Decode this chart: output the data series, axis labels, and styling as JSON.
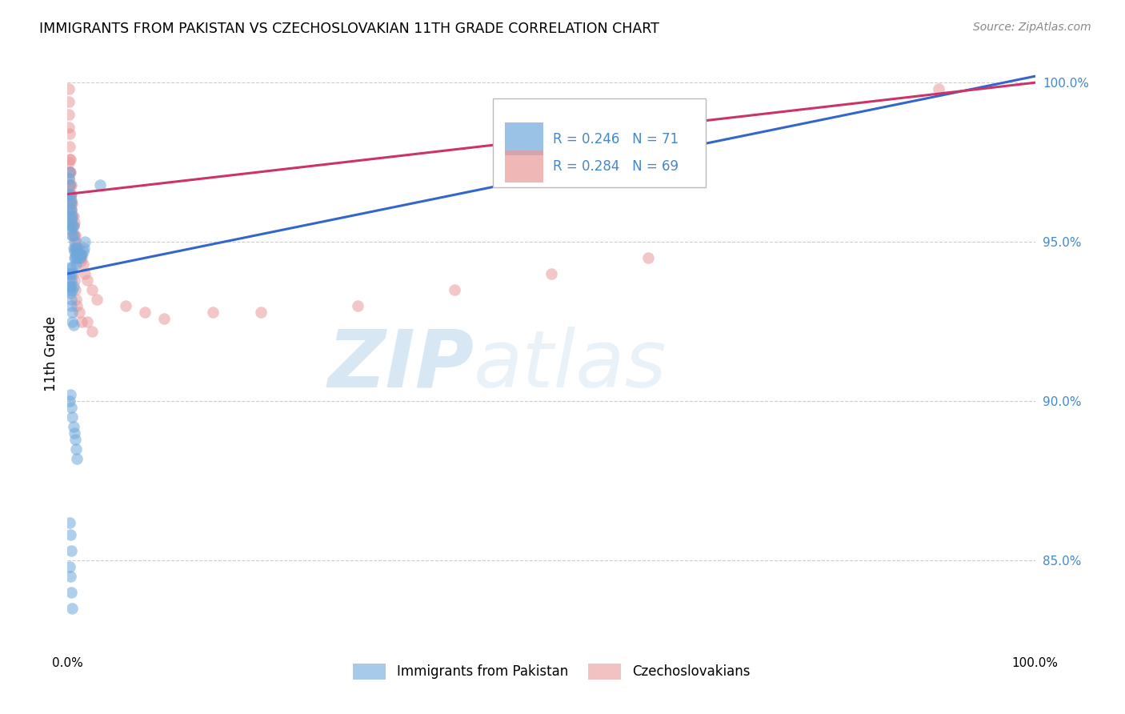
{
  "title": "IMMIGRANTS FROM PAKISTAN VS CZECHOSLOVAKIAN 11TH GRADE CORRELATION CHART",
  "source": "Source: ZipAtlas.com",
  "ylabel": "11th Grade",
  "ytick_labels": [
    "85.0%",
    "90.0%",
    "95.0%",
    "100.0%"
  ],
  "ytick_values": [
    0.85,
    0.9,
    0.95,
    1.0
  ],
  "xlim": [
    0.0,
    1.0
  ],
  "ylim": [
    0.822,
    1.008
  ],
  "blue_color": "#6fa8dc",
  "pink_color": "#ea9999",
  "blue_line_color": "#3366cc",
  "pink_line_color": "#cc3366",
  "blue_label": "Immigrants from Pakistan",
  "pink_label": "Czechoslovakians",
  "watermark_zip": "ZIP",
  "watermark_atlas": "atlas",
  "blue_scatter_x": [
    0.001,
    0.001,
    0.002,
    0.002,
    0.002,
    0.003,
    0.003,
    0.003,
    0.003,
    0.004,
    0.004,
    0.004,
    0.004,
    0.005,
    0.005,
    0.005,
    0.006,
    0.006,
    0.006,
    0.007,
    0.007,
    0.007,
    0.008,
    0.008,
    0.009,
    0.009,
    0.01,
    0.01,
    0.011,
    0.012,
    0.013,
    0.014,
    0.015,
    0.016,
    0.017,
    0.018,
    0.002,
    0.003,
    0.004,
    0.005,
    0.002,
    0.003,
    0.004,
    0.005,
    0.006,
    0.001,
    0.002,
    0.003,
    0.003,
    0.004,
    0.004,
    0.005,
    0.005,
    0.006,
    0.002,
    0.003,
    0.004,
    0.005,
    0.006,
    0.007,
    0.008,
    0.009,
    0.01,
    0.002,
    0.003,
    0.004,
    0.002,
    0.003,
    0.004,
    0.005,
    0.034
  ],
  "blue_scatter_y": [
    0.97,
    0.965,
    0.968,
    0.972,
    0.96,
    0.965,
    0.962,
    0.958,
    0.955,
    0.963,
    0.96,
    0.957,
    0.954,
    0.958,
    0.955,
    0.952,
    0.955,
    0.952,
    0.948,
    0.95,
    0.947,
    0.945,
    0.948,
    0.945,
    0.946,
    0.943,
    0.948,
    0.945,
    0.945,
    0.946,
    0.945,
    0.946,
    0.946,
    0.947,
    0.948,
    0.95,
    0.94,
    0.942,
    0.94,
    0.942,
    0.935,
    0.936,
    0.938,
    0.935,
    0.936,
    0.94,
    0.938,
    0.936,
    0.934,
    0.932,
    0.93,
    0.928,
    0.925,
    0.924,
    0.9,
    0.902,
    0.898,
    0.895,
    0.892,
    0.89,
    0.888,
    0.885,
    0.882,
    0.862,
    0.858,
    0.853,
    0.848,
    0.845,
    0.84,
    0.835,
    0.968
  ],
  "pink_scatter_x": [
    0.001,
    0.001,
    0.001,
    0.001,
    0.002,
    0.002,
    0.002,
    0.002,
    0.003,
    0.003,
    0.003,
    0.003,
    0.003,
    0.004,
    0.004,
    0.004,
    0.005,
    0.005,
    0.006,
    0.006,
    0.007,
    0.007,
    0.008,
    0.008,
    0.009,
    0.01,
    0.011,
    0.012,
    0.013,
    0.014,
    0.015,
    0.016,
    0.018,
    0.02,
    0.025,
    0.03,
    0.002,
    0.002,
    0.003,
    0.003,
    0.004,
    0.004,
    0.005,
    0.005,
    0.001,
    0.001,
    0.002,
    0.002,
    0.003,
    0.003,
    0.006,
    0.007,
    0.008,
    0.009,
    0.01,
    0.012,
    0.015,
    0.02,
    0.025,
    0.06,
    0.08,
    0.1,
    0.15,
    0.2,
    0.3,
    0.4,
    0.5,
    0.6,
    0.9
  ],
  "pink_scatter_y": [
    0.998,
    0.994,
    0.99,
    0.986,
    0.984,
    0.98,
    0.976,
    0.972,
    0.976,
    0.972,
    0.968,
    0.965,
    0.962,
    0.968,
    0.965,
    0.962,
    0.962,
    0.958,
    0.958,
    0.955,
    0.956,
    0.952,
    0.952,
    0.948,
    0.95,
    0.948,
    0.948,
    0.946,
    0.946,
    0.944,
    0.945,
    0.943,
    0.94,
    0.938,
    0.935,
    0.932,
    0.972,
    0.968,
    0.965,
    0.962,
    0.96,
    0.956,
    0.955,
    0.952,
    0.975,
    0.97,
    0.968,
    0.965,
    0.963,
    0.96,
    0.94,
    0.938,
    0.935,
    0.932,
    0.93,
    0.928,
    0.925,
    0.925,
    0.922,
    0.93,
    0.928,
    0.926,
    0.928,
    0.928,
    0.93,
    0.935,
    0.94,
    0.945,
    0.998
  ],
  "blue_line_x": [
    0.0,
    1.0
  ],
  "blue_line_y": [
    0.94,
    1.002
  ],
  "pink_line_x": [
    0.0,
    1.0
  ],
  "pink_line_y": [
    0.965,
    1.0
  ],
  "grid_color": "#cccccc",
  "right_tick_color": "#4488cc"
}
